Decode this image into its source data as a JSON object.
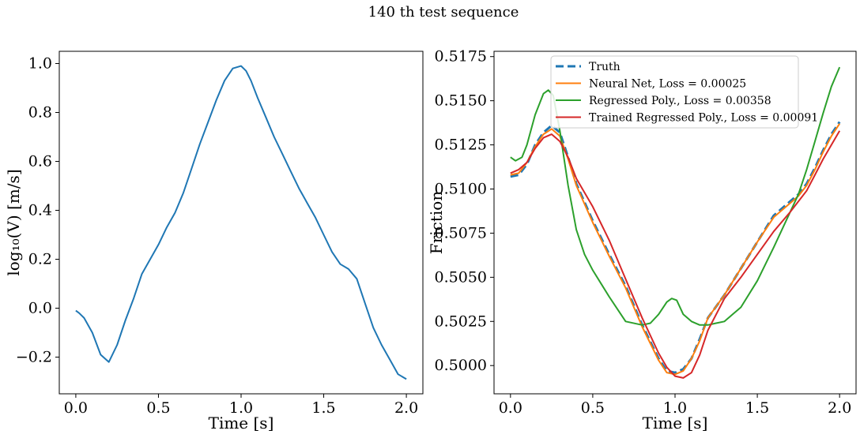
{
  "suptitle": "140 th test sequence",
  "chart_data": [
    {
      "type": "line",
      "xlabel": "Time [s]",
      "ylabel": "log₁₀(V) [m/s]",
      "xlim": [
        -0.1,
        2.1
      ],
      "ylim": [
        -0.35,
        1.05
      ],
      "xticks": [
        0.0,
        0.5,
        1.0,
        1.5,
        2.0
      ],
      "xtick_labels": [
        "0.0",
        "0.5",
        "1.0",
        "1.5",
        "2.0"
      ],
      "yticks": [
        -0.2,
        0.0,
        0.2,
        0.4,
        0.6,
        0.8,
        1.0
      ],
      "ytick_labels": [
        "−0.2",
        "0.0",
        "0.2",
        "0.4",
        "0.6",
        "0.8",
        "1.0"
      ],
      "grid": false,
      "series": [
        {
          "color": "#1f77b4",
          "dash": "solid",
          "x": [
            0.0,
            0.02,
            0.05,
            0.1,
            0.15,
            0.2,
            0.25,
            0.3,
            0.35,
            0.4,
            0.45,
            0.5,
            0.55,
            0.6,
            0.65,
            0.7,
            0.75,
            0.8,
            0.85,
            0.9,
            0.95,
            1.0,
            1.03,
            1.06,
            1.1,
            1.15,
            1.2,
            1.25,
            1.3,
            1.35,
            1.4,
            1.45,
            1.5,
            1.55,
            1.6,
            1.65,
            1.7,
            1.75,
            1.8,
            1.85,
            1.9,
            1.95,
            2.0
          ],
          "y": [
            -0.01,
            -0.02,
            -0.04,
            -0.1,
            -0.19,
            -0.22,
            -0.15,
            -0.05,
            0.04,
            0.14,
            0.2,
            0.26,
            0.33,
            0.39,
            0.47,
            0.57,
            0.67,
            0.76,
            0.85,
            0.93,
            0.98,
            0.99,
            0.97,
            0.93,
            0.86,
            0.78,
            0.7,
            0.63,
            0.56,
            0.49,
            0.43,
            0.37,
            0.3,
            0.23,
            0.18,
            0.16,
            0.12,
            0.02,
            -0.08,
            -0.15,
            -0.21,
            -0.27,
            -0.29
          ]
        }
      ]
    },
    {
      "type": "line",
      "xlabel": "Time [s]",
      "ylabel": "Friction",
      "xlim": [
        -0.1,
        2.1
      ],
      "ylim": [
        0.4984,
        0.5178
      ],
      "xticks": [
        0.0,
        0.5,
        1.0,
        1.5,
        2.0
      ],
      "xtick_labels": [
        "0.0",
        "0.5",
        "1.0",
        "1.5",
        "2.0"
      ],
      "yticks": [
        0.5,
        0.5025,
        0.505,
        0.5075,
        0.51,
        0.5125,
        0.515,
        0.5175
      ],
      "ytick_labels": [
        "0.5000",
        "0.5025",
        "0.5050",
        "0.5075",
        "0.5100",
        "0.5125",
        "0.5150",
        "0.5175"
      ],
      "grid": false,
      "legend": "top-center",
      "series": [
        {
          "name": "Truth",
          "color": "#1f77b4",
          "dash": "dashed",
          "x": [
            0.0,
            0.05,
            0.1,
            0.15,
            0.2,
            0.25,
            0.3,
            0.35,
            0.4,
            0.5,
            0.6,
            0.7,
            0.8,
            0.9,
            0.95,
            1.0,
            1.05,
            1.1,
            1.15,
            1.2,
            1.3,
            1.4,
            1.5,
            1.6,
            1.65,
            1.7,
            1.75,
            1.8,
            1.85,
            1.9,
            1.95,
            2.0
          ],
          "y": [
            0.5107,
            0.5108,
            0.5114,
            0.5125,
            0.5132,
            0.5136,
            0.5132,
            0.5118,
            0.5103,
            0.5082,
            0.5063,
            0.5045,
            0.5023,
            0.5004,
            0.4997,
            0.4996,
            0.4998,
            0.5004,
            0.5015,
            0.5027,
            0.504,
            0.5055,
            0.507,
            0.5085,
            0.5089,
            0.5093,
            0.5097,
            0.5103,
            0.5112,
            0.5122,
            0.5131,
            0.5138
          ]
        },
        {
          "name": "Neural Net, Loss = 0.00025",
          "color": "#ff7f0e",
          "dash": "solid",
          "x": [
            0.0,
            0.05,
            0.1,
            0.15,
            0.2,
            0.25,
            0.3,
            0.35,
            0.4,
            0.5,
            0.6,
            0.7,
            0.8,
            0.9,
            0.95,
            1.0,
            1.05,
            1.1,
            1.15,
            1.2,
            1.3,
            1.4,
            1.5,
            1.6,
            1.65,
            1.7,
            1.75,
            1.8,
            1.85,
            1.9,
            1.95,
            2.0
          ],
          "y": [
            0.5108,
            0.5109,
            0.5115,
            0.5124,
            0.5131,
            0.5134,
            0.513,
            0.5117,
            0.5102,
            0.5081,
            0.5062,
            0.5044,
            0.5022,
            0.5003,
            0.4996,
            0.4995,
            0.4997,
            0.5004,
            0.5014,
            0.5027,
            0.504,
            0.5055,
            0.507,
            0.5084,
            0.5088,
            0.5092,
            0.5096,
            0.5102,
            0.5111,
            0.5121,
            0.513,
            0.5137
          ]
        },
        {
          "name": "Regressed Poly., Loss = 0.00358",
          "color": "#2ca02c",
          "dash": "solid",
          "x": [
            0.0,
            0.03,
            0.07,
            0.1,
            0.15,
            0.2,
            0.23,
            0.26,
            0.3,
            0.35,
            0.4,
            0.45,
            0.5,
            0.6,
            0.7,
            0.8,
            0.85,
            0.9,
            0.95,
            0.98,
            1.01,
            1.05,
            1.1,
            1.15,
            1.2,
            1.25,
            1.3,
            1.35,
            1.4,
            1.5,
            1.6,
            1.7,
            1.75,
            1.8,
            1.85,
            1.9,
            1.95,
            2.0
          ],
          "y": [
            0.5118,
            0.5116,
            0.5118,
            0.5125,
            0.5142,
            0.5154,
            0.5156,
            0.5153,
            0.5133,
            0.5102,
            0.5077,
            0.5063,
            0.5054,
            0.5039,
            0.5025,
            0.5023,
            0.5024,
            0.5029,
            0.5036,
            0.5038,
            0.5037,
            0.5029,
            0.5025,
            0.5023,
            0.5023,
            0.5024,
            0.5025,
            0.5029,
            0.5033,
            0.5048,
            0.5067,
            0.5087,
            0.5097,
            0.5111,
            0.5127,
            0.5143,
            0.5158,
            0.5169
          ]
        },
        {
          "name": "Trained Regressed Poly., Loss = 0.00091",
          "color": "#d62728",
          "dash": "solid",
          "x": [
            0.0,
            0.05,
            0.1,
            0.15,
            0.2,
            0.25,
            0.3,
            0.35,
            0.4,
            0.5,
            0.6,
            0.7,
            0.8,
            0.9,
            0.95,
            1.0,
            1.05,
            1.1,
            1.15,
            1.2,
            1.3,
            1.4,
            1.5,
            1.6,
            1.7,
            1.8,
            1.85,
            1.9,
            1.95,
            2.0
          ],
          "y": [
            0.5109,
            0.5111,
            0.5115,
            0.5123,
            0.5129,
            0.5131,
            0.5127,
            0.5118,
            0.5106,
            0.509,
            0.5071,
            0.5049,
            0.5027,
            0.5007,
            0.4999,
            0.4994,
            0.4993,
            0.4996,
            0.5006,
            0.502,
            0.5038,
            0.505,
            0.5063,
            0.5076,
            0.5087,
            0.5099,
            0.5108,
            0.5117,
            0.5125,
            0.5133
          ]
        }
      ]
    }
  ]
}
